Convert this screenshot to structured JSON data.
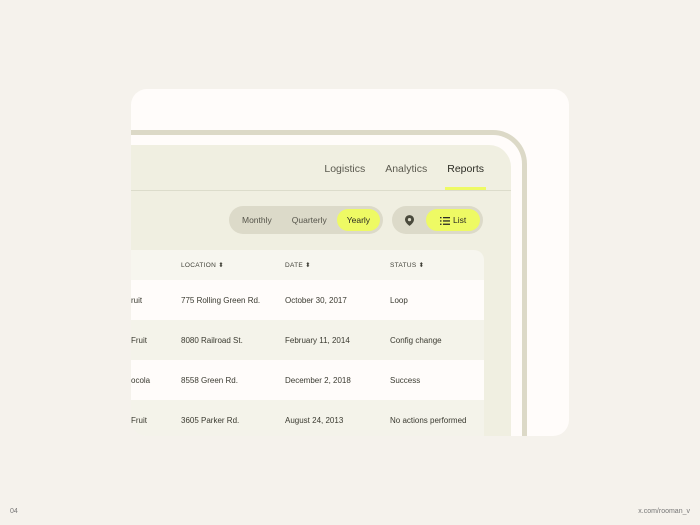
{
  "nav": {
    "tabs": [
      "Logistics",
      "Analytics",
      "Reports"
    ],
    "active": "Reports"
  },
  "period": {
    "options": [
      "Monthly",
      "Quarterly",
      "Yearly"
    ],
    "selected": "Yearly"
  },
  "view": {
    "map_icon": "map-pin-icon",
    "list_icon": "list-icon",
    "list_label": "List",
    "selected": "List"
  },
  "table": {
    "headers": [
      "LOCATION",
      "DATE",
      "STATUS"
    ],
    "sort_icon": "⬍",
    "rows": [
      {
        "name": "ruit",
        "location": "775 Rolling Green Rd.",
        "date": "October 30, 2017",
        "status": "Loop"
      },
      {
        "name": "Fruit",
        "location": "8080 Railroad St.",
        "date": "February 11, 2014",
        "status": "Config change"
      },
      {
        "name": "ocola",
        "location": "8558 Green Rd.",
        "date": "December 2, 2018",
        "status": "Success"
      },
      {
        "name": "Fruit",
        "location": "3605 Parker Rd.",
        "date": "August 24, 2013",
        "status": "No actions performed"
      }
    ]
  },
  "footer": {
    "page": "04",
    "credit": "x.com/rooman_v"
  },
  "colors": {
    "accent": "#eefa64",
    "background": "#f5f2ec",
    "panel": "#f0efe1"
  }
}
